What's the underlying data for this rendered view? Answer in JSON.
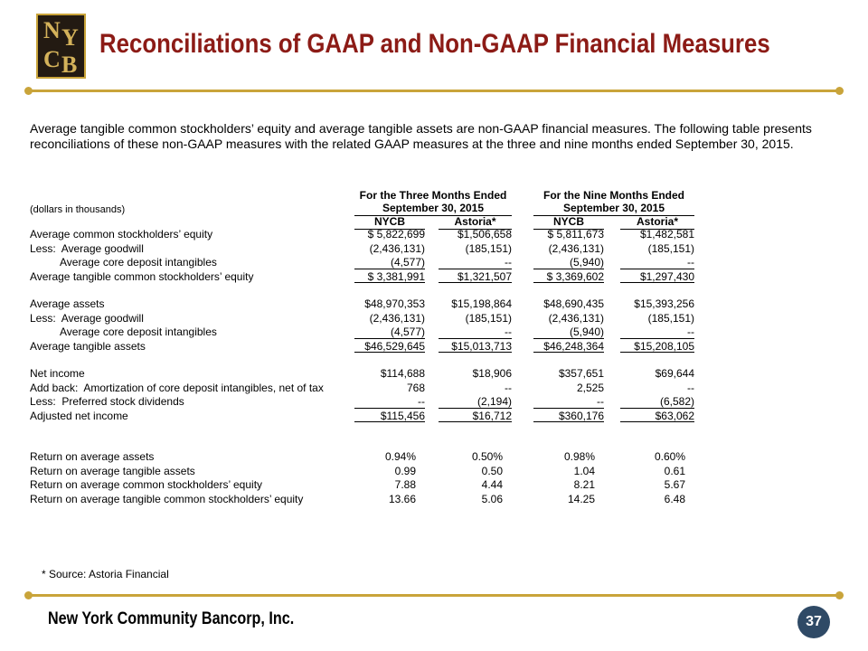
{
  "header": {
    "logo": [
      "N",
      "Y",
      "C",
      "B"
    ],
    "title": "Reconciliations of GAAP and Non-GAAP Financial Measures"
  },
  "intro": "Average tangible common stockholders’ equity and average tangible assets are non-GAAP financial measures. The following table presents reconciliations of these non-GAAP measures with the related GAAP measures at the three and nine months ended September 30, 2015.",
  "table": {
    "unit_note": "(dollars in thousands)",
    "groups": [
      {
        "line1": "For the Three Months Ended",
        "line2": "September 30, 2015"
      },
      {
        "line1": "For the Nine Months Ended",
        "line2": "September 30, 2015"
      }
    ],
    "columns": [
      "NYCB",
      "Astoria*",
      "NYCB",
      "Astoria*"
    ],
    "sections": [
      {
        "rows": [
          {
            "label": "Average common stockholders’ equity",
            "values": [
              "$ 5,822,699",
              "$1,506,658",
              "$ 5,811,673",
              "$1,482,581"
            ]
          },
          {
            "label": "Less:  Average goodwill",
            "values": [
              "(2,436,131)",
              "(185,151)",
              "(2,436,131)",
              "(185,151)"
            ]
          },
          {
            "label": "Average core deposit intangibles",
            "indent": true,
            "underline": true,
            "values": [
              "(4,577)",
              "--",
              "(5,940)",
              "--"
            ]
          },
          {
            "label": "Average tangible common stockholders’ equity",
            "underline": true,
            "values": [
              "$ 3,381,991",
              "$1,321,507",
              "$ 3,369,602",
              "$1,297,430"
            ]
          }
        ]
      },
      {
        "rows": [
          {
            "label": "Average assets",
            "values": [
              "$48,970,353",
              "$15,198,864",
              "$48,690,435",
              "$15,393,256"
            ]
          },
          {
            "label": "Less:  Average goodwill",
            "values": [
              "(2,436,131)",
              "(185,151)",
              "(2,436,131)",
              "(185,151)"
            ]
          },
          {
            "label": "Average core deposit intangibles",
            "indent": true,
            "underline": true,
            "values": [
              "(4,577)",
              "--",
              "(5,940)",
              "--"
            ]
          },
          {
            "label": "Average tangible assets",
            "underline": true,
            "values": [
              "$46,529,645",
              "$15,013,713",
              "$46,248,364",
              "$15,208,105"
            ]
          }
        ]
      },
      {
        "rows": [
          {
            "label": "Net income",
            "values": [
              "$114,688",
              "$18,906",
              "$357,651",
              "$69,644"
            ]
          },
          {
            "label": "Add back:  Amortization of core deposit intangibles, net of tax",
            "values": [
              "768",
              "--",
              "2,525",
              "--"
            ]
          },
          {
            "label": "Less:  Preferred stock dividends",
            "underline": true,
            "values": [
              "--",
              "(2,194)",
              "--",
              "(6,582)"
            ]
          },
          {
            "label": "Adjusted net income",
            "underline": true,
            "values": [
              "$115,456",
              "$16,712",
              "$360,176",
              "$63,062"
            ]
          }
        ]
      },
      {
        "rows": [
          {
            "label": "Return on average assets",
            "values": [
              "0.94%",
              "0.50%",
              "0.98%",
              "0.60%"
            ]
          },
          {
            "label": "Return on average tangible assets",
            "values": [
              "0.99",
              "0.50",
              "1.04",
              "0.61"
            ]
          },
          {
            "label": "Return on average common stockholders’ equity",
            "values": [
              "7.88",
              "4.44",
              "8.21",
              "5.67"
            ]
          },
          {
            "label": "Return on average tangible common stockholders’ equity",
            "values": [
              "13.66",
              "5.06",
              "14.25",
              "6.48"
            ]
          }
        ]
      }
    ]
  },
  "footnote": "* Source:  Astoria Financial",
  "footer": {
    "company": "New York Community Bancorp, Inc.",
    "page": "37"
  }
}
